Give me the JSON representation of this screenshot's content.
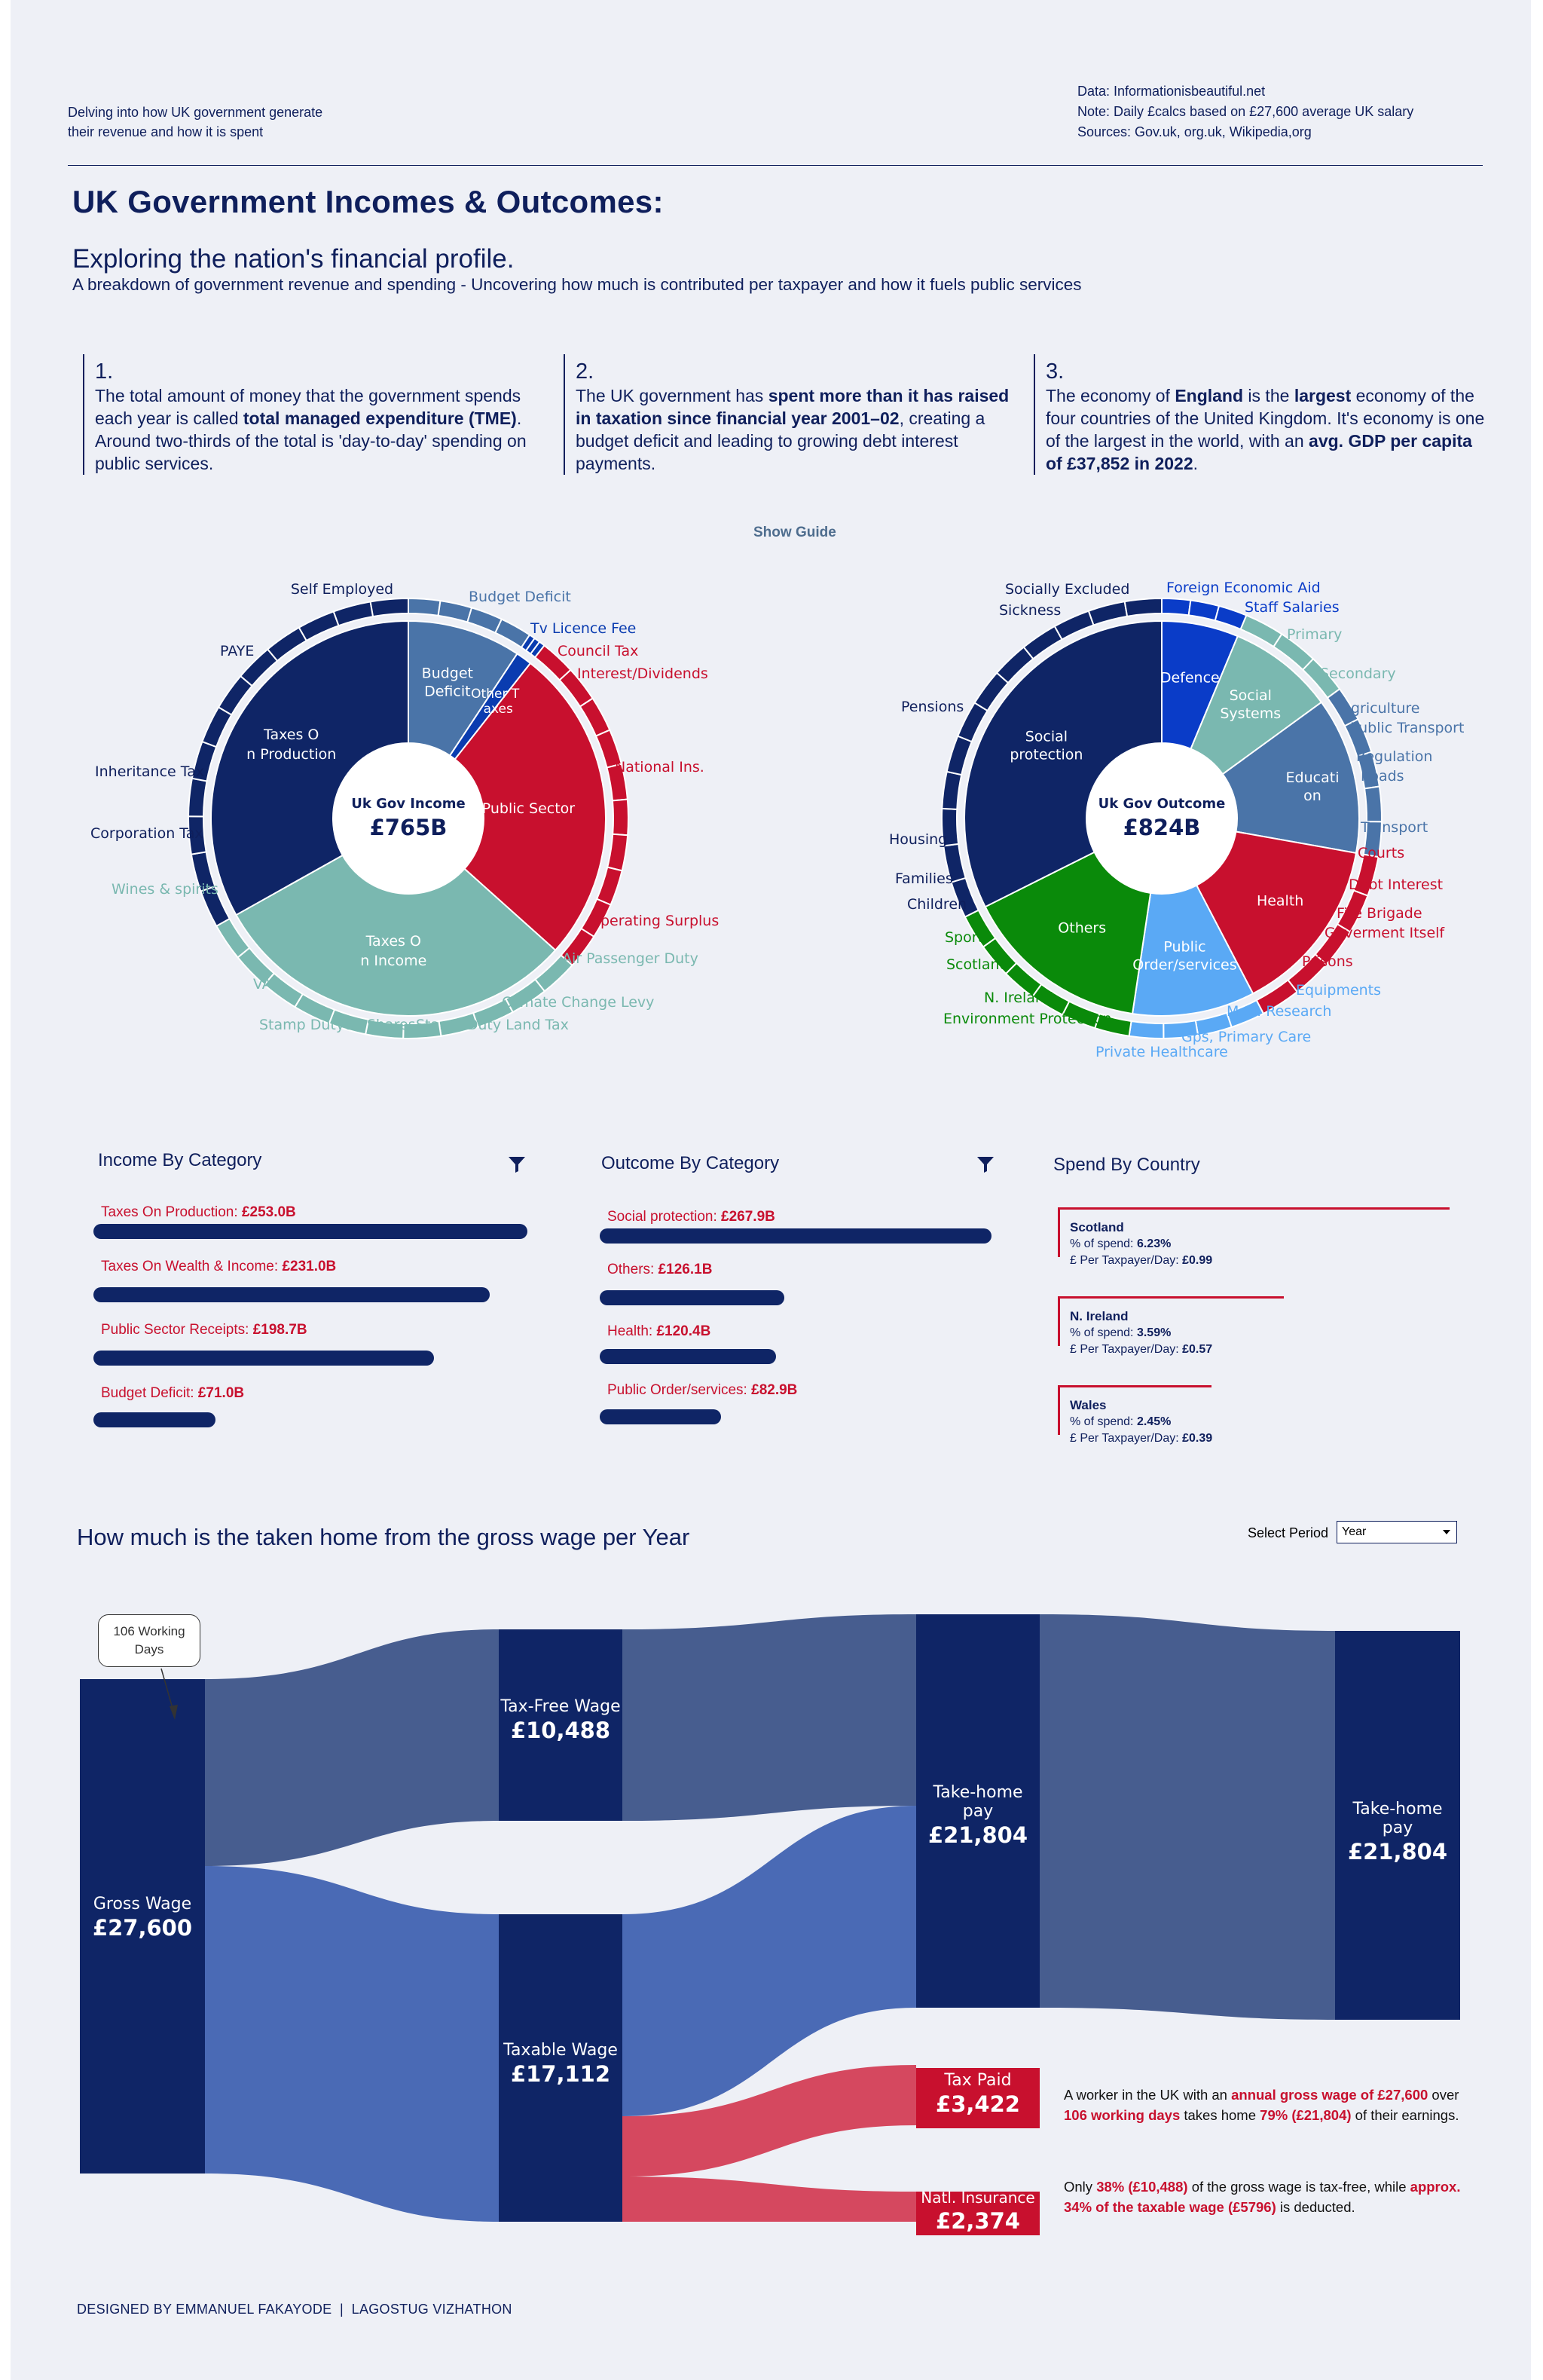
{
  "header": {
    "left_line1": "Delving into how UK government generate",
    "left_line2": "their revenue and how it is spent",
    "right_line1": "Data: Informationisbeautiful.net",
    "right_line2": "Note: Daily £calcs based on £27,600 average UK salary",
    "right_line3": "Sources: Gov.uk, org.uk, Wikipedia,org"
  },
  "title": "UK Government Incomes & Outcomes:",
  "subtitle": "Exploring the nation's financial profile.",
  "description": "A breakdown of government revenue and spending - Uncovering how much is contributed per taxpayer and how it fuels public services",
  "notes": [
    {
      "num": "1.",
      "parts": [
        {
          "t": "The total amount of money that the government spends each year is called ",
          "b": false
        },
        {
          "t": "total managed expenditure (TME)",
          "b": true
        },
        {
          "t": ". Around two-thirds of the total is 'day-to-day' spending on public services.",
          "b": false
        }
      ]
    },
    {
      "num": "2.",
      "parts": [
        {
          "t": "The UK government has ",
          "b": false
        },
        {
          "t": "spent more than it has raised in taxation since financial year 2001–02",
          "b": true
        },
        {
          "t": ", creating a budget deficit and leading to growing debt interest payments.",
          "b": false
        }
      ]
    },
    {
      "num": "3.",
      "parts": [
        {
          "t": "The economy of ",
          "b": false
        },
        {
          "t": "England",
          "b": true
        },
        {
          "t": " is the ",
          "b": false
        },
        {
          "t": "largest",
          "b": true
        },
        {
          "t": " economy of the four countries of the United Kingdom. It's economy is one of the largest in the world, with an ",
          "b": false
        },
        {
          "t": "avg. GDP per capita of £37,852 in 2022",
          "b": true
        },
        {
          "t": ".",
          "b": false
        }
      ]
    }
  ],
  "show_guide": "Show Guide",
  "income_sunburst": {
    "center_label": "Uk Gov Income",
    "center_value": "£765B",
    "inner": [
      {
        "label": "Budget Deficit",
        "value": 71.0,
        "color": "#4a74a8"
      },
      {
        "label": "Other Taxes",
        "value": 10.0,
        "color": "#0a3cb0"
      },
      {
        "label": "Public Sector",
        "value": 198.7,
        "color": "#c8102e"
      },
      {
        "label": "Taxes On Income",
        "value": 231.0,
        "color": "#7ab8b0"
      },
      {
        "label": "Taxes On Production",
        "value": 253.0,
        "color": "#0f2566"
      }
    ],
    "inner_labels": [
      "Budget",
      "Deficit",
      "Other T",
      "axes",
      "Public Sector",
      "Taxes O",
      "n Income",
      "Taxes O",
      "n Production"
    ],
    "outer_labels": {
      "budget_deficit": "Budget Deficit",
      "tv_licence": "Tv Licence Fee",
      "council_tax": "Council Tax",
      "interest": "Interest/Dividends",
      "national_ins": "National Ins.",
      "operating_surplus": "Operating Surplus",
      "air_passenger": "Air Passenger Duty",
      "climate_levy": "Climate Change Levy",
      "stamp_land": "Stamp Duty Land Tax",
      "stamp_shares": "Stamp Dutyon Shares",
      "vat": "VAT",
      "wines": "Wines & spirits",
      "corp_tax": "Corporation Tax",
      "inheritance": "Inheritance Tax",
      "paye": "PAYE",
      "self_employed": "Self Employed"
    }
  },
  "outcome_sunburst": {
    "center_label": "Uk Gov Outcome",
    "center_value": "£824B",
    "inner": [
      {
        "label": "Defence",
        "value": 52,
        "color": "#0a3cc8"
      },
      {
        "label": "Social Systems",
        "value": 72,
        "color": "#7ab8b0"
      },
      {
        "label": "Education",
        "value": 106,
        "color": "#4a74a8"
      },
      {
        "label": "Health",
        "value": 120.4,
        "color": "#c8102e"
      },
      {
        "label": "Public Order/services",
        "value": 82.9,
        "color": "#5aa9f5"
      },
      {
        "label": "Others",
        "value": 126.1,
        "color": "#0a8a0a"
      },
      {
        "label": "Social protection",
        "value": 267.9,
        "color": "#0f2566"
      }
    ],
    "inner_labels": [
      "Defence",
      "Social",
      "Systems",
      "Educati",
      "on",
      "Health",
      "Public",
      "Order/services",
      "Others",
      "Social",
      "protection"
    ],
    "outer_labels": {
      "foreign_aid": "Foreign Economic Aid",
      "staff_salaries": "Staff Salaries",
      "primary": "Primary",
      "secondary": "Secondary",
      "agriculture": "Agriculture",
      "public_transport": "Public Transport",
      "regulation": "Regulation",
      "roads": "Roads",
      "transport": "Transport",
      "courts": "Courts",
      "debt_interest": "Debt Interest",
      "fire_brigade": "Fire Brigade",
      "gov_itself": "Goverment Itself",
      "prisons": "Prisons",
      "equipments": "Equipments",
      "med_research": "Med. Research",
      "gps": "Gps, Primary Care",
      "private_healthcare": "Private Healthcare",
      "env_protection": "Environment Protection",
      "n_ireland": "N. Ireland",
      "scotland": "Scotland",
      "sport": "Sport",
      "children": "Children",
      "families": "Families",
      "housing": "Housing",
      "pensions": "Pensions",
      "socially_excluded": "Socially Excluded",
      "sickness": "Sickness"
    }
  },
  "income_by_category": {
    "title": "Income By Category",
    "items": [
      {
        "name": "Taxes On Production: ",
        "amount": "£253.0B",
        "value": 253.0
      },
      {
        "name": "Taxes On Wealth & Income: ",
        "amount": "£231.0B",
        "value": 231.0
      },
      {
        "name": "Public Sector Receipts: ",
        "amount": "£198.7B",
        "value": 198.7
      },
      {
        "name": "Budget Deficit: ",
        "amount": "£71.0B",
        "value": 71.0
      }
    ]
  },
  "outcome_by_category": {
    "title": "Outcome By Category",
    "items": [
      {
        "name": "Social protection: ",
        "amount": "£267.9B",
        "value": 267.9
      },
      {
        "name": "Others: ",
        "amount": "£126.1B",
        "value": 126.1
      },
      {
        "name": "Health: ",
        "amount": "£120.4B",
        "value": 120.4
      },
      {
        "name": "Public Order/services: ",
        "amount": "£82.9B",
        "value": 82.9
      }
    ]
  },
  "spend_by_country": {
    "title": "Spend By Country",
    "spend_label": "% of spend: ",
    "day_label": "£ Per Taxpayer/Day: ",
    "items": [
      {
        "name": "Scotland",
        "pct": "6.23%",
        "per_day": "£0.99",
        "value": 6.23
      },
      {
        "name": "N. Ireland",
        "pct": "3.59%",
        "per_day": "£0.57",
        "value": 3.59
      },
      {
        "name": "Wales",
        "pct": "2.45%",
        "per_day": "£0.39",
        "value": 2.45
      }
    ]
  },
  "sankey": {
    "title": "How much is the taken home from the gross wage per Year",
    "period_label": "Select Period",
    "period_value": "Year",
    "callout_line1": "106 Working",
    "callout_line2": "Days",
    "nodes": {
      "gross": {
        "label": "Gross Wage",
        "value": "£27,600"
      },
      "taxfree": {
        "label": "Tax-Free Wage",
        "value": "£10,488"
      },
      "taxable": {
        "label": "Taxable Wage",
        "value": "£17,112"
      },
      "takehome1": {
        "label": "Take-home pay",
        "value": "£21,804"
      },
      "taxpaid": {
        "label": "Tax Paid",
        "value": "£3,422"
      },
      "natins": {
        "label": "Natl. Insurance",
        "value": "£2,374"
      },
      "takehome2": {
        "label": "Take-home pay",
        "value": "£21,804"
      }
    },
    "annotation1": [
      {
        "t": "A worker in the UK with an ",
        "c": "n"
      },
      {
        "t": "annual gross wage of £27,600",
        "c": "r"
      },
      {
        "t": " over ",
        "c": "n"
      },
      {
        "t": "106 working days",
        "c": "r"
      },
      {
        "t": " takes home ",
        "c": "n"
      },
      {
        "t": "79% (£21,804)",
        "c": "r"
      },
      {
        "t": " of their earnings.",
        "c": "n"
      }
    ],
    "annotation2": [
      {
        "t": "Only ",
        "c": "n"
      },
      {
        "t": "38% (£10,488)",
        "c": "r"
      },
      {
        "t": " of the gross wage is tax-free, while ",
        "c": "n"
      },
      {
        "t": "approx. 34% of the taxable wage (£5796)",
        "c": "r"
      },
      {
        "t": " is deducted.",
        "c": "n"
      }
    ]
  },
  "chart_data": [
    {
      "type": "sunburst",
      "title": "Uk Gov Income",
      "total": "£765B",
      "categories": [
        "Taxes On Production",
        "Taxes On Wealth & Income",
        "Public Sector Receipts",
        "Budget Deficit"
      ],
      "values": [
        253.0,
        231.0,
        198.7,
        71.0
      ]
    },
    {
      "type": "sunburst",
      "title": "Uk Gov Outcome",
      "total": "£824B",
      "categories": [
        "Social protection",
        "Others",
        "Health",
        "Public Order/services"
      ],
      "values": [
        267.9,
        126.1,
        120.4,
        82.9
      ]
    },
    {
      "type": "bar",
      "title": "Spend By Country",
      "categories": [
        "Scotland",
        "N. Ireland",
        "Wales"
      ],
      "values": [
        6.23,
        3.59,
        2.45
      ]
    },
    {
      "type": "sankey",
      "title": "How much is the taken home from the gross wage per Year",
      "links": [
        {
          "source": "Gross Wage",
          "target": "Tax-Free Wage",
          "value": 10488
        },
        {
          "source": "Gross Wage",
          "target": "Taxable Wage",
          "value": 17112
        },
        {
          "source": "Tax-Free Wage",
          "target": "Take-home pay",
          "value": 10488
        },
        {
          "source": "Taxable Wage",
          "target": "Take-home pay",
          "value": 11316
        },
        {
          "source": "Taxable Wage",
          "target": "Tax Paid",
          "value": 3422
        },
        {
          "source": "Taxable Wage",
          "target": "Natl. Insurance",
          "value": 2374
        },
        {
          "source": "Take-home pay",
          "target": "Take-home pay",
          "value": 21804
        }
      ]
    }
  ]
}
